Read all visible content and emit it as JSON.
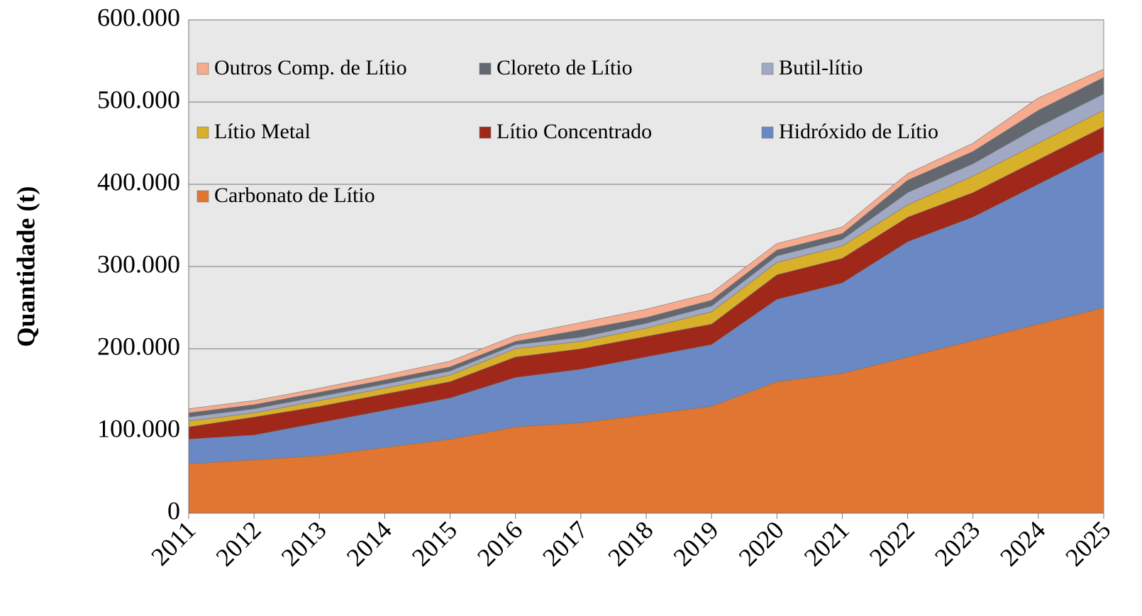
{
  "chart_data": {
    "type": "stacked_area",
    "y_label": "Quantidade (t)",
    "categories": [
      "2011",
      "2012",
      "2013",
      "2014",
      "2015",
      "2016",
      "2017",
      "2018",
      "2019",
      "2020",
      "2021",
      "2022",
      "2023",
      "2024",
      "2025"
    ],
    "series": [
      {
        "name": "Carbonato de Lítio",
        "color": "#e07632",
        "values": [
          60000,
          65000,
          70000,
          80000,
          90000,
          105000,
          110000,
          120000,
          130000,
          160000,
          170000,
          190000,
          210000,
          230000,
          250000
        ]
      },
      {
        "name": "Hidróxido de Lítio",
        "color": "#6a89c4",
        "values": [
          30000,
          30000,
          40000,
          45000,
          50000,
          60000,
          65000,
          70000,
          75000,
          100000,
          110000,
          140000,
          150000,
          170000,
          190000
        ]
      },
      {
        "name": "Lítio Concentrado",
        "color": "#a0281a",
        "values": [
          15000,
          22000,
          20000,
          20000,
          20000,
          25000,
          25000,
          25000,
          25000,
          30000,
          30000,
          30000,
          30000,
          30000,
          30000
        ]
      },
      {
        "name": "Lítio Metal",
        "color": "#d9b02a",
        "values": [
          7000,
          5000,
          7000,
          7000,
          8000,
          10000,
          9000,
          10000,
          15000,
          15000,
          15000,
          15000,
          20000,
          20000,
          20000
        ]
      },
      {
        "name": "Butil-lítio",
        "color": "#a0a8c4",
        "values": [
          5000,
          5000,
          5000,
          5000,
          5000,
          5000,
          5000,
          6000,
          7000,
          8000,
          8000,
          15000,
          15000,
          20000,
          20000
        ]
      },
      {
        "name": "Cloreto de Lítio",
        "color": "#636870",
        "values": [
          5000,
          5000,
          5000,
          5000,
          5000,
          4000,
          9000,
          7000,
          7000,
          7000,
          7000,
          15000,
          15000,
          20000,
          20000
        ]
      },
      {
        "name": "Outros Comp. de Lítio",
        "color": "#f6ab8e",
        "values": [
          5000,
          5000,
          5000,
          6000,
          7000,
          7000,
          9000,
          10000,
          9000,
          8000,
          8000,
          8000,
          10000,
          15000,
          10000
        ]
      }
    ],
    "ylim": [
      0,
      600000
    ],
    "yticks": [
      0,
      {
        "value": 100000,
        "label": "100.000"
      },
      {
        "value": 200000,
        "label": "200.000"
      },
      {
        "value": 300000,
        "label": "300.000"
      },
      {
        "value": 400000,
        "label": "400.000"
      },
      {
        "value": 500000,
        "label": "500.000"
      },
      {
        "value": 600000,
        "label": "600.000"
      }
    ],
    "grid": true,
    "legend": "top-left",
    "plot_background": "#e8e8e8"
  }
}
